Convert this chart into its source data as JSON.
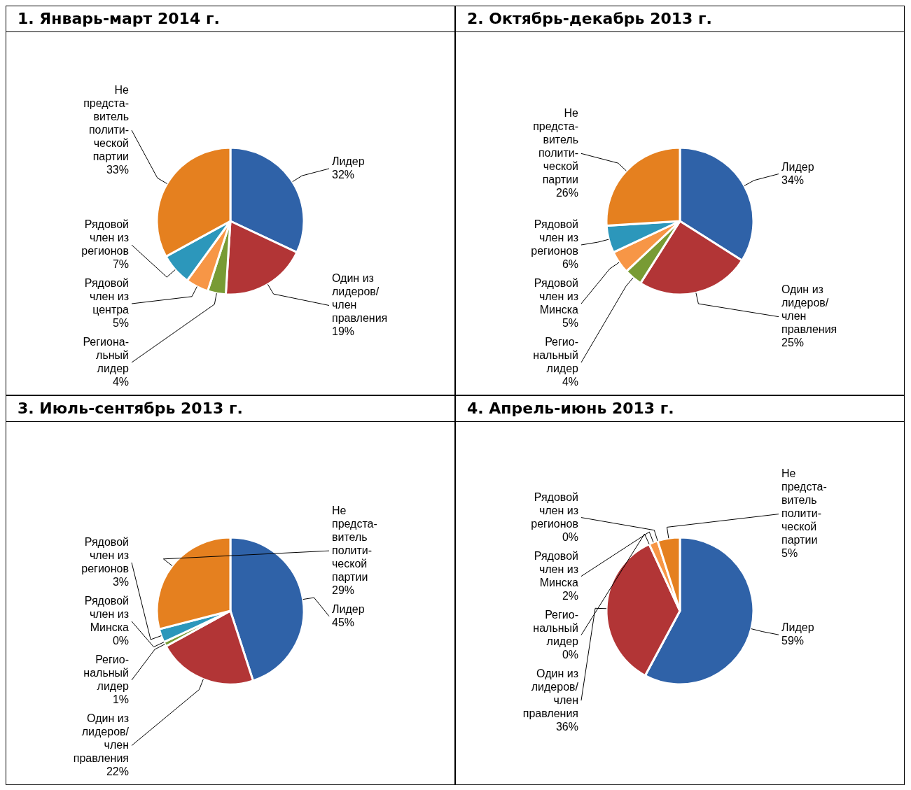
{
  "chart_data": [
    {
      "type": "pie",
      "title": "1. Январь-март 2014 г.",
      "categories": [
        "Лидер",
        "Один из\nлидеров/\nчлен\nправления",
        "Региона-\nльный\nлидер",
        "Рядовой\nчлен из\nцентра",
        "Рядовой\nчлен из\nрегионов",
        "Не\nпредста-\nвитель\nполити-\nческой\nпартии"
      ],
      "values": [
        32,
        19,
        4,
        5,
        7,
        33
      ],
      "value_labels": [
        "32%",
        "19%",
        "4%",
        "5%",
        "7%",
        "33%"
      ],
      "colors": [
        "#2f62a8",
        "#b23536",
        "#789b34",
        "#f79646",
        "#2c97bb",
        "#e5801f"
      ]
    },
    {
      "type": "pie",
      "title": "2. Октябрь-декабрь 2013 г.",
      "categories": [
        "Лидер",
        "Один из\nлидеров/\nчлен\nправления",
        "Регио-\nнальный\nлидер",
        "Рядовой\nчлен из\nМинска",
        "Рядовой\nчлен из\nрегионов",
        "Не\nпредста-\nвитель\nполити-\nческой\nпартии"
      ],
      "values": [
        34,
        25,
        4,
        5,
        6,
        26
      ],
      "value_labels": [
        "34%",
        "25%",
        "4%",
        "5%",
        "6%",
        "26%"
      ],
      "colors": [
        "#2f62a8",
        "#b23536",
        "#789b34",
        "#f79646",
        "#2c97bb",
        "#e5801f"
      ]
    },
    {
      "type": "pie",
      "title": "3. Июль-сентябрь 2013 г.",
      "categories": [
        "Лидер",
        "Один из\nлидеров/\nчлен\nправления",
        "Регио-\nнальный\nлидер",
        "Рядовой\nчлен из\nМинска",
        "Рядовой\nчлен из\nрегионов",
        "Не\nпредста-\nвитель\nполити-\nческой\nпартии"
      ],
      "values": [
        45,
        22,
        1,
        0,
        3,
        29
      ],
      "value_labels": [
        "45%",
        "22%",
        "1%",
        "0%",
        "3%",
        "29%"
      ],
      "colors": [
        "#2f62a8",
        "#b23536",
        "#789b34",
        "#f79646",
        "#2c97bb",
        "#e5801f"
      ]
    },
    {
      "type": "pie",
      "title": "4. Апрель-июнь 2013 г.",
      "categories": [
        "Лидер",
        "Один из\nлидеров/\nчлен\nправления",
        "Регио-\nнальный\nлидер",
        "Рядовой\nчлен из\nМинска",
        "Рядовой\nчлен из\nрегионов",
        "Не\nпредста-\nвитель\nполити-\nческой\nпартии"
      ],
      "values": [
        59,
        36,
        0,
        2,
        0,
        5
      ],
      "value_labels": [
        "59%",
        "36%",
        "0%",
        "2%",
        "0%",
        "5%"
      ],
      "colors": [
        "#2f62a8",
        "#b23536",
        "#789b34",
        "#f79646",
        "#2c97bb",
        "#e5801f"
      ]
    }
  ]
}
